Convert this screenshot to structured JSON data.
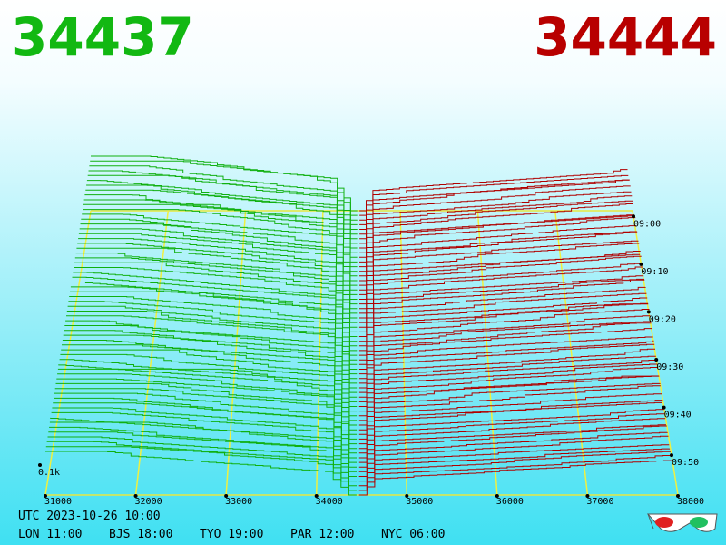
{
  "header": {
    "bid": "34437",
    "ask": "34444"
  },
  "axis": {
    "price_labels": [
      "31000",
      "32000",
      "33000",
      "34000",
      "35000",
      "36000",
      "37000",
      "38000"
    ],
    "time_labels": [
      "09:00",
      "09:10",
      "09:20",
      "09:30",
      "09:40",
      "09:50"
    ],
    "scale_label": "0.1k"
  },
  "footer": {
    "utc": "UTC 2023-10-26 10:00",
    "clocks": [
      "LON 11:00",
      "BJS 18:00",
      "TYO 19:00",
      "PAR 12:00",
      "NYC 06:00"
    ]
  }
}
